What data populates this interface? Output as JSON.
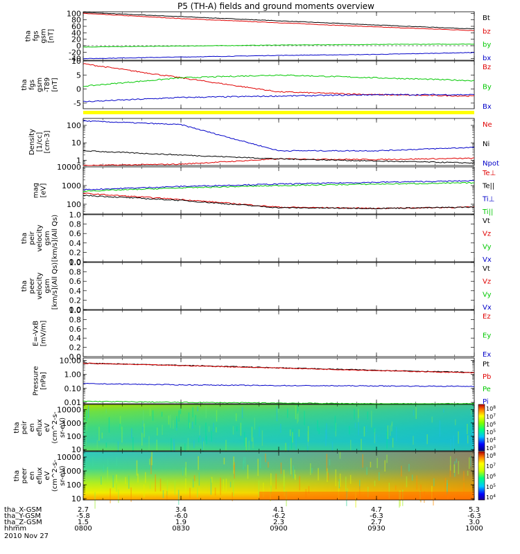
{
  "title": "P5 (TH-A) fields and ground moments overview",
  "colors": {
    "black": "#000000",
    "red": "#e00000",
    "green": "#00c800",
    "blue": "#0000c8",
    "yellow": "#ffff00"
  },
  "ephemeris": {
    "rows": [
      {
        "label": "tha_X-GSM",
        "values": [
          "2.7",
          "3.4",
          "4.1",
          "4.7",
          "5.3"
        ]
      },
      {
        "label": "tha_Y-GSM",
        "values": [
          "-5.8",
          "-6.0",
          "-6.2",
          "-6.3",
          "-6.3"
        ]
      },
      {
        "label": "tha_Z-GSM",
        "values": [
          "1.5",
          "1.9",
          "2.3",
          "2.7",
          "3.0"
        ]
      },
      {
        "label": "hhmm",
        "values": [
          "0800",
          "0830",
          "0900",
          "0930",
          "1000"
        ]
      }
    ],
    "date": "2010 Nov 27"
  },
  "chart_data": [
    {
      "id": "fgs",
      "type": "line",
      "ylabel": [
        "tha",
        "fgs",
        "gsm",
        "[nT]"
      ],
      "ylim": [
        -45,
        105
      ],
      "yticks": [
        "100",
        "80",
        "60",
        "40",
        "20",
        "0",
        "-20",
        "-40"
      ],
      "ytick_values": [
        100,
        80,
        60,
        40,
        20,
        0,
        -20,
        -40
      ],
      "x": [
        "0800",
        "0830",
        "0900",
        "0930",
        "1000"
      ],
      "series": [
        {
          "name": "Bt",
          "color": "#000000",
          "values": [
            103,
            90,
            77,
            64,
            52
          ]
        },
        {
          "name": "bz",
          "color": "#e00000",
          "values": [
            100,
            84,
            71,
            58,
            47
          ]
        },
        {
          "name": "by",
          "color": "#00c800",
          "values": [
            -4,
            -1,
            2,
            4,
            5
          ]
        },
        {
          "name": "bx",
          "color": "#0000c8",
          "values": [
            -40,
            -35,
            -30,
            -27,
            -21
          ]
        }
      ]
    },
    {
      "id": "fgs_dt",
      "type": "line",
      "ylabel": [
        "tha",
        "fgs",
        "gsm",
        "-T89",
        "[nT]"
      ],
      "ylim": [
        -7,
        10
      ],
      "yticks": [
        "10",
        "5",
        "0",
        "-5"
      ],
      "ytick_values": [
        10,
        5,
        0,
        -5
      ],
      "x": [
        "0800",
        "0830",
        "0900",
        "0930",
        "1000"
      ],
      "series": [
        {
          "name": "Bz",
          "color": "#e00000",
          "values": [
            9,
            4,
            -1,
            -2,
            -2.5
          ]
        },
        {
          "name": "By",
          "color": "#00c800",
          "values": [
            1,
            4,
            5,
            4,
            3
          ]
        },
        {
          "name": "Bx",
          "color": "#0000c8",
          "values": [
            -4.5,
            -3,
            -2.5,
            -2,
            -2
          ]
        }
      ]
    },
    {
      "id": "density",
      "type": "line",
      "scale": "log",
      "ylabel": [
        "Density",
        "[1/cc]",
        "[cm-3]"
      ],
      "ylim": [
        0.5,
        250
      ],
      "yticks": [
        "100",
        "10",
        "1"
      ],
      "ytick_values": [
        100,
        10,
        1
      ],
      "x": [
        "0800",
        "0830",
        "0900",
        "0930",
        "1000"
      ],
      "series": [
        {
          "name": "Ne",
          "color": "#e00000",
          "values": [
            0.5,
            0.6,
            1.2,
            1.1,
            1.3
          ]
        },
        {
          "name": "Ni",
          "color": "#000000",
          "values": [
            3.5,
            2.0,
            1.2,
            0.9,
            0.7
          ]
        },
        {
          "name": "Npot",
          "color": "#0000c8",
          "values": [
            180,
            110,
            3.5,
            3.5,
            5.5
          ]
        }
      ]
    },
    {
      "id": "temp",
      "type": "line",
      "scale": "log",
      "ylabel": [
        "mag",
        "[eV]"
      ],
      "ylim": [
        30,
        10000
      ],
      "yticks": [
        "10000",
        "1000",
        "100"
      ],
      "ytick_values": [
        10000,
        1000,
        100
      ],
      "x": [
        "0800",
        "0830",
        "0900",
        "0930",
        "1000"
      ],
      "series": [
        {
          "name": "Te⊥",
          "color": "#e00000",
          "values": [
            380,
            180,
            70,
            60,
            70
          ]
        },
        {
          "name": "Te||",
          "color": "#000000",
          "values": [
            300,
            160,
            65,
            60,
            70
          ]
        },
        {
          "name": "Ti⊥",
          "color": "#0000c8",
          "values": [
            600,
            900,
            1200,
            1500,
            1800
          ]
        },
        {
          "name": "Ti||",
          "color": "#00c800",
          "values": [
            500,
            750,
            1000,
            1200,
            1400
          ]
        }
      ]
    },
    {
      "id": "peir_v",
      "type": "line",
      "ylabel": [
        "tha",
        "peir",
        "velocity",
        "gsm",
        "[km/s](All Qs)"
      ],
      "ylim": [
        0,
        1
      ],
      "yticks": [
        "1.0",
        "0.8",
        "0.6",
        "0.4",
        "0.2",
        "0.0"
      ],
      "ytick_values": [
        1,
        0.8,
        0.6,
        0.4,
        0.2,
        0
      ],
      "series": [
        {
          "name": "Vt",
          "color": "#000000",
          "values": []
        },
        {
          "name": "Vz",
          "color": "#e00000",
          "values": []
        },
        {
          "name": "Vy",
          "color": "#00c800",
          "values": []
        },
        {
          "name": "Vx",
          "color": "#0000c8",
          "values": []
        }
      ]
    },
    {
      "id": "peer_v",
      "type": "line",
      "ylabel": [
        "tha",
        "peer",
        "velocity",
        "gsm",
        "[km/s](All Qs)"
      ],
      "ylim": [
        0,
        1
      ],
      "yticks": [
        "1.0",
        "0.8",
        "0.6",
        "0.4",
        "0.2",
        "0.0"
      ],
      "ytick_values": [
        1,
        0.8,
        0.6,
        0.4,
        0.2,
        0
      ],
      "series": [
        {
          "name": "Vt",
          "color": "#000000",
          "values": []
        },
        {
          "name": "Vz",
          "color": "#e00000",
          "values": []
        },
        {
          "name": "Vy",
          "color": "#00c800",
          "values": []
        },
        {
          "name": "Vx",
          "color": "#0000c8",
          "values": []
        }
      ]
    },
    {
      "id": "efield",
      "type": "line",
      "ylabel": [
        "E=-VxB",
        "[mV/m]"
      ],
      "ylim": [
        0,
        1
      ],
      "yticks": [
        "1.0",
        "0.8",
        "0.6",
        "0.4",
        "0.2",
        "0.0"
      ],
      "ytick_values": [
        1,
        0.8,
        0.6,
        0.4,
        0.2,
        0
      ],
      "series": [
        {
          "name": "Ez",
          "color": "#e00000",
          "values": []
        },
        {
          "name": "Ey",
          "color": "#00c800",
          "values": []
        },
        {
          "name": "Ex",
          "color": "#0000c8",
          "values": []
        }
      ]
    },
    {
      "id": "pressure",
      "type": "line",
      "scale": "log",
      "ylabel": [
        "Pressure",
        "[nPa]"
      ],
      "ylim": [
        0.008,
        15
      ],
      "yticks": [
        "10.00",
        "1.00",
        "0.10",
        "0.01"
      ],
      "ytick_values": [
        10,
        1,
        0.1,
        0.01
      ],
      "x": [
        "0800",
        "0830",
        "0900",
        "0930",
        "1000"
      ],
      "series": [
        {
          "name": "Pt",
          "color": "#000000",
          "values": [
            6.5,
            4.5,
            3.0,
            2.0,
            1.4
          ]
        },
        {
          "name": "Pb",
          "color": "#e00000",
          "values": [
            6.3,
            4.3,
            2.9,
            1.9,
            1.3
          ]
        },
        {
          "name": "Pe",
          "color": "#00c800",
          "values": [
            0.012,
            0.01,
            0.009,
            0.008,
            0.008
          ]
        },
        {
          "name": "Pi",
          "color": "#0000c8",
          "values": [
            0.22,
            0.18,
            0.16,
            0.15,
            0.14
          ]
        }
      ]
    },
    {
      "id": "peir_en",
      "type": "heatmap",
      "ylabel": [
        "tha",
        "peir",
        "en",
        "eflux",
        "eV",
        "(cm^2-s-",
        "sr-eV)"
      ],
      "yscale": "log",
      "ylim": [
        8,
        25000
      ],
      "yticks": [
        "10000",
        "1000",
        "100",
        "10"
      ],
      "ytick_values": [
        10000,
        1000,
        100,
        10
      ],
      "colorbar": {
        "ticks": [
          "10^8",
          "10^7",
          "10^6",
          "10^5",
          "10^4",
          "10^3"
        ]
      }
    },
    {
      "id": "peer_en",
      "type": "heatmap",
      "ylabel": [
        "tha",
        "peer",
        "en",
        "eflux",
        "eV",
        "(cm^2-s-",
        "sr-eV)"
      ],
      "yscale": "log",
      "ylim": [
        8,
        25000
      ],
      "yticks": [
        "10000",
        "1000",
        "100",
        "10"
      ],
      "ytick_values": [
        10000,
        1000,
        100,
        10
      ],
      "colorbar": {
        "ticks": [
          "10^8",
          "10^7",
          "10^6",
          "10^5",
          "10^4"
        ]
      }
    }
  ]
}
